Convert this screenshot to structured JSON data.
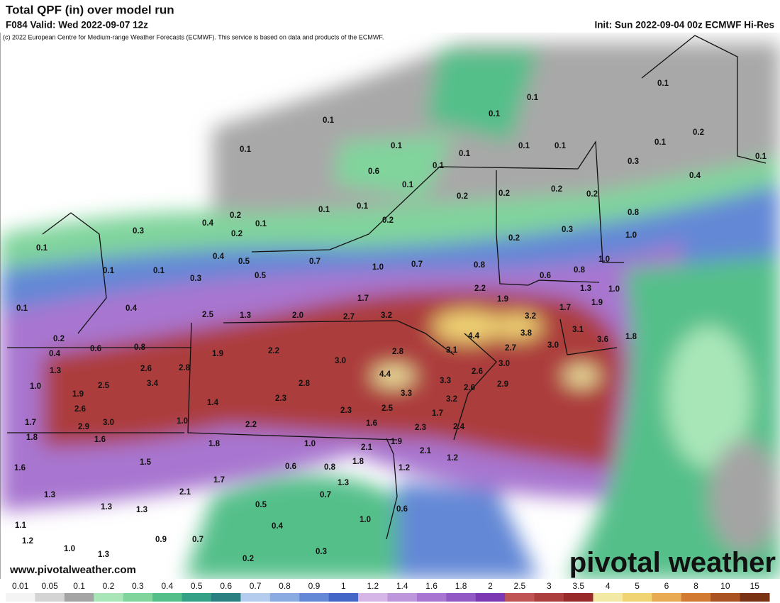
{
  "header": {
    "title": "Total QPF (in) over model run",
    "valid": "F084 Valid: Wed 2022-09-07 12z",
    "init": "Init: Sun 2022-09-04 00z ECMWF Hi-Res",
    "copyright": "(c) 2022 European Centre for Medium-range Weather Forecasts (ECMWF). This service is based on data and products of the ECMWF."
  },
  "map": {
    "point_labels": [
      "0.1",
      "0.1",
      "0.1",
      "0.1",
      "0.1",
      "0.2",
      "0.1",
      "0.1",
      "0.1",
      "0.1",
      "0.1",
      "0.1",
      "0.6",
      "0.1",
      "0.1",
      "0.3",
      "0.4",
      "0.2",
      "0.2",
      "0.2",
      "0.2",
      "0.1",
      "0.1",
      "0.2",
      "0.2",
      "0.4",
      "0.1",
      "0.2",
      "0.3",
      "0.8",
      "0.3",
      "0.2",
      "1.0",
      "0.1",
      "0.4",
      "0.5",
      "0.7",
      "1.0",
      "0.7",
      "0.8",
      "0.1",
      "0.1",
      "0.5",
      "0.3",
      "0.6",
      "0.8",
      "1.0",
      "1.3",
      "1.0",
      "1.7",
      "2.2",
      "1.9",
      "1.7",
      "1.9",
      "0.1",
      "0.4",
      "2.5",
      "1.3",
      "2.0",
      "2.7",
      "3.2",
      "3.2",
      "4.4",
      "3.8",
      "3.1",
      "1.8",
      "3.6",
      "0.2",
      "0.6",
      "0.8",
      "0.4",
      "1.9",
      "2.2",
      "2.8",
      "3.1",
      "2.7",
      "3.0",
      "3.0",
      "1.3",
      "2.6",
      "2.8",
      "3.0",
      "2.6",
      "4.4",
      "1.0",
      "3.4",
      "2.5",
      "2.8",
      "3.3",
      "2.6",
      "2.9",
      "1.9",
      "3.3",
      "1.4",
      "2.3",
      "3.2",
      "2.6",
      "2.3",
      "2.5",
      "1.7",
      "1.7",
      "2.9",
      "3.0",
      "1.0",
      "2.2",
      "1.6",
      "2.3",
      "2.4",
      "1.8",
      "1.6",
      "1.8",
      "1.0",
      "1.9",
      "2.1",
      "2.1",
      "1.2",
      "1.8",
      "1.5",
      "0.6",
      "0.8",
      "1.2",
      "1.6",
      "1.7",
      "1.3",
      "2.1",
      "1.3",
      "0.7",
      "1.3",
      "1.3",
      "0.5",
      "0.6",
      "1.1",
      "1.0",
      "0.4",
      "1.2",
      "0.9",
      "0.7",
      "1.0",
      "1.3",
      "0.3",
      "0.2"
    ],
    "watermark_url": "www.pivotalweather.com",
    "brand": "pivotal weather"
  },
  "colorbar": {
    "labels": [
      "0.01",
      "0.05",
      "0.1",
      "0.2",
      "0.3",
      "0.4",
      "0.5",
      "0.6",
      "0.7",
      "0.8",
      "0.9",
      "1",
      "1.2",
      "1.4",
      "1.6",
      "1.8",
      "2",
      "2.5",
      "3",
      "3.5",
      "4",
      "5",
      "6",
      "8",
      "10",
      "15"
    ],
    "colors": [
      "#f4f4f4",
      "#d4d4d4",
      "#a4a4a4",
      "#a8e6b8",
      "#80d49c",
      "#55bf8a",
      "#34a086",
      "#2a7f80",
      "#b4cdef",
      "#8aaae2",
      "#6488d6",
      "#4466c6",
      "#d6b6e6",
      "#be96dc",
      "#a876d0",
      "#9258c4",
      "#7c38b2",
      "#c05454",
      "#ac3e3e",
      "#982a2a",
      "#f2eaa4",
      "#f0d474",
      "#e8aa52",
      "#d27a32",
      "#aa5222",
      "#7a3214"
    ]
  }
}
